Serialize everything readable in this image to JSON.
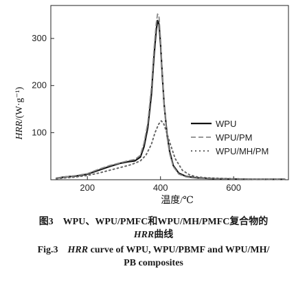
{
  "chart_data": {
    "type": "line",
    "xlabel": "温度/℃",
    "ylabel_italic": "HRR",
    "ylabel_rest": "/(W·g⁻¹)",
    "xlim": [
      100,
      750
    ],
    "ylim": [
      0,
      370
    ],
    "xticks": [
      200,
      400,
      600
    ],
    "yticks": [
      100,
      200,
      300
    ],
    "legend_position": "right",
    "series": [
      {
        "name": "WPU",
        "style": "solid",
        "x": [
          115,
          140,
          170,
          200,
          230,
          260,
          290,
          310,
          330,
          345,
          355,
          365,
          375,
          382,
          388,
          392,
          396,
          400,
          405,
          410,
          418,
          425,
          435,
          450,
          470,
          500,
          550,
          650,
          740
        ],
        "y": [
          3,
          6,
          8,
          12,
          20,
          28,
          35,
          38,
          40,
          48,
          70,
          110,
          180,
          260,
          315,
          338,
          330,
          290,
          220,
          160,
          95,
          60,
          30,
          14,
          7,
          4,
          2,
          1,
          1
        ]
      },
      {
        "name": "WPU/PM",
        "style": "dashed",
        "x": [
          115,
          140,
          170,
          200,
          230,
          260,
          290,
          310,
          330,
          345,
          355,
          365,
          375,
          382,
          388,
          392,
          396,
          400,
          405,
          410,
          418,
          425,
          435,
          450,
          470,
          500,
          550,
          650,
          740
        ],
        "y": [
          3,
          6,
          9,
          13,
          22,
          30,
          36,
          40,
          43,
          52,
          78,
          120,
          195,
          275,
          330,
          352,
          345,
          300,
          225,
          160,
          90,
          55,
          28,
          12,
          6,
          3,
          2,
          1,
          1
        ]
      },
      {
        "name": "WPU/MH/PM",
        "style": "dotted",
        "x": [
          115,
          140,
          170,
          200,
          230,
          260,
          290,
          320,
          345,
          360,
          375,
          385,
          395,
          402,
          408,
          415,
          425,
          440,
          460,
          480,
          500,
          530,
          560,
          600,
          650,
          740
        ],
        "y": [
          2,
          4,
          6,
          9,
          14,
          20,
          26,
          32,
          40,
          52,
          75,
          100,
          118,
          125,
          120,
          105,
          80,
          45,
          20,
          10,
          6,
          4,
          3,
          2,
          1,
          1
        ]
      }
    ]
  },
  "captions": {
    "cn_line1": "图3　WPU、WPU/PMFC和WPU/MH/PMFC复合物的",
    "cn_line2_italic": "HRR",
    "cn_line2_rest": "曲线",
    "en_line1_prefix": "Fig.3　",
    "en_line1_italic": "HRR",
    "en_line1_rest": " curve of WPU, WPU/PBMF and WPU/MH/",
    "en_line2": "PB composites"
  }
}
